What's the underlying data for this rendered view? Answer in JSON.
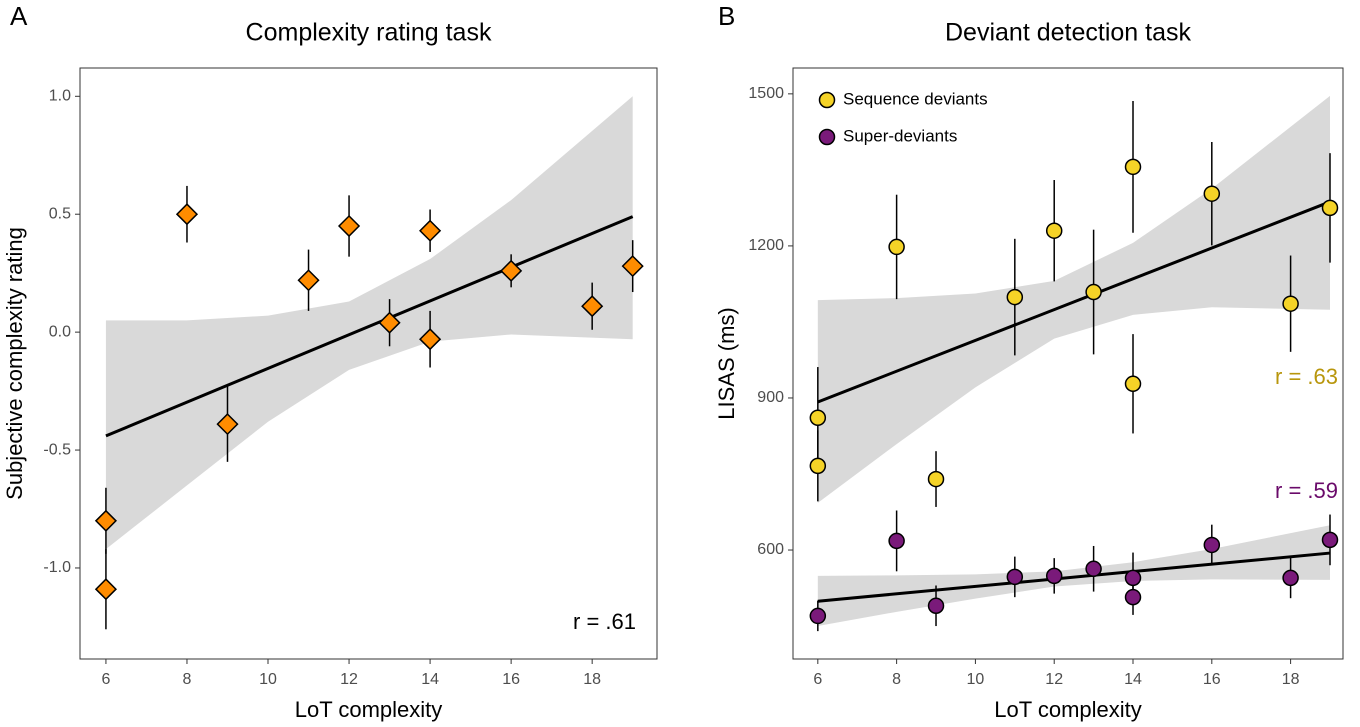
{
  "chart_data": [
    {
      "type": "scatter",
      "panel_label": "A",
      "title": "Complexity rating task",
      "x_label": "LoT complexity",
      "y_label": "Subjective complexity rating",
      "xlim": [
        5.36,
        19.6
      ],
      "ylim": [
        -1.386,
        1.12
      ],
      "xticks": [
        6,
        8,
        10,
        12,
        14,
        16,
        18
      ],
      "yticks": [
        {
          "value": -1,
          "label": "-1.0"
        },
        -0.5,
        {
          "value": 0,
          "label": "0.0"
        },
        0.5,
        {
          "value": 1,
          "label": "1.0"
        }
      ],
      "series": [
        {
          "color": "#ff8c00",
          "marker": "diamond",
          "x": [
            6,
            6,
            8,
            9,
            11,
            12,
            13,
            14,
            14,
            16,
            18,
            19
          ],
          "values": [
            -0.8,
            -1.09,
            0.5,
            -0.39,
            0.22,
            0.45,
            0.04,
            0.43,
            -0.03,
            0.26,
            0.11,
            0.28
          ],
          "errors": [
            0.14,
            0.17,
            0.12,
            0.16,
            0.13,
            0.13,
            0.1,
            0.09,
            0.12,
            0.07,
            0.1,
            0.11
          ],
          "fit": {
            "x": [
              6,
              19
            ],
            "values": [
              -0.44,
              0.49
            ]
          },
          "ci": {
            "x": [
              6,
              8,
              10,
              12,
              14,
              16,
              19
            ],
            "upper": [
              0.05,
              0.05,
              0.07,
              0.13,
              0.31,
              0.56,
              1.0
            ],
            "lower": [
              -0.92,
              -0.65,
              -0.38,
              -0.16,
              -0.04,
              -0.01,
              -0.03
            ]
          },
          "annotation": "r = .61",
          "annotation_color": "#000000"
        }
      ]
    },
    {
      "type": "scatter",
      "panel_label": "B",
      "title": "Deviant detection task",
      "x_label": "LoT complexity",
      "y_label": "LISAS (ms)",
      "xlim": [
        5.37,
        19.33
      ],
      "ylim": [
        385,
        1551
      ],
      "xticks": [
        6,
        8,
        10,
        12,
        14,
        16,
        18
      ],
      "yticks": [
        600,
        900,
        1200,
        1500
      ],
      "legend": "top-left",
      "series": [
        {
          "name": "Sequence deviants",
          "color": "#f5d327",
          "marker": "circle",
          "x": [
            6,
            6,
            8,
            9,
            11,
            12,
            13,
            14,
            14,
            16,
            18,
            19
          ],
          "values": [
            861,
            766,
            1198,
            740,
            1099,
            1230,
            1109,
            1356,
            928,
            1303,
            1086,
            1275
          ],
          "errors": [
            100,
            70,
            103,
            55,
            115,
            100,
            123,
            130,
            98,
            102,
            95,
            108
          ],
          "fit": {
            "x": [
              6,
              19
            ],
            "values": [
              892,
              1287
            ]
          },
          "ci": {
            "x": [
              6,
              8,
              10,
              12,
              14,
              16,
              19
            ],
            "upper": [
              1093,
              1097,
              1106,
              1131,
              1206,
              1313,
              1496
            ],
            "lower": [
              693,
              809,
              921,
              1017,
              1064,
              1079,
              1074
            ]
          },
          "annotation": "r = .63",
          "annotation_color": "#b8960c"
        },
        {
          "name": "Super-deviants",
          "color": "#7a1a7a",
          "marker": "circle",
          "x": [
            6,
            8,
            9,
            11,
            12,
            13,
            14,
            14,
            16,
            18,
            19
          ],
          "values": [
            470,
            618,
            490,
            547,
            549,
            563,
            545,
            507,
            610,
            545,
            620
          ],
          "errors": [
            30,
            60,
            40,
            40,
            35,
            45,
            50,
            35,
            40,
            40,
            50
          ],
          "fit": {
            "x": [
              6,
              19
            ],
            "values": [
              499,
              594
            ]
          },
          "ci": {
            "x": [
              6,
              8,
              10,
              12,
              14,
              16,
              19
            ],
            "upper": [
              549,
              550,
              552,
              558,
              576,
              602,
              649
            ],
            "lower": [
              450,
              478,
              504,
              528,
              539,
              542,
              541
            ]
          },
          "annotation": "r = .59",
          "annotation_color": "#6a0a6a"
        }
      ]
    }
  ]
}
